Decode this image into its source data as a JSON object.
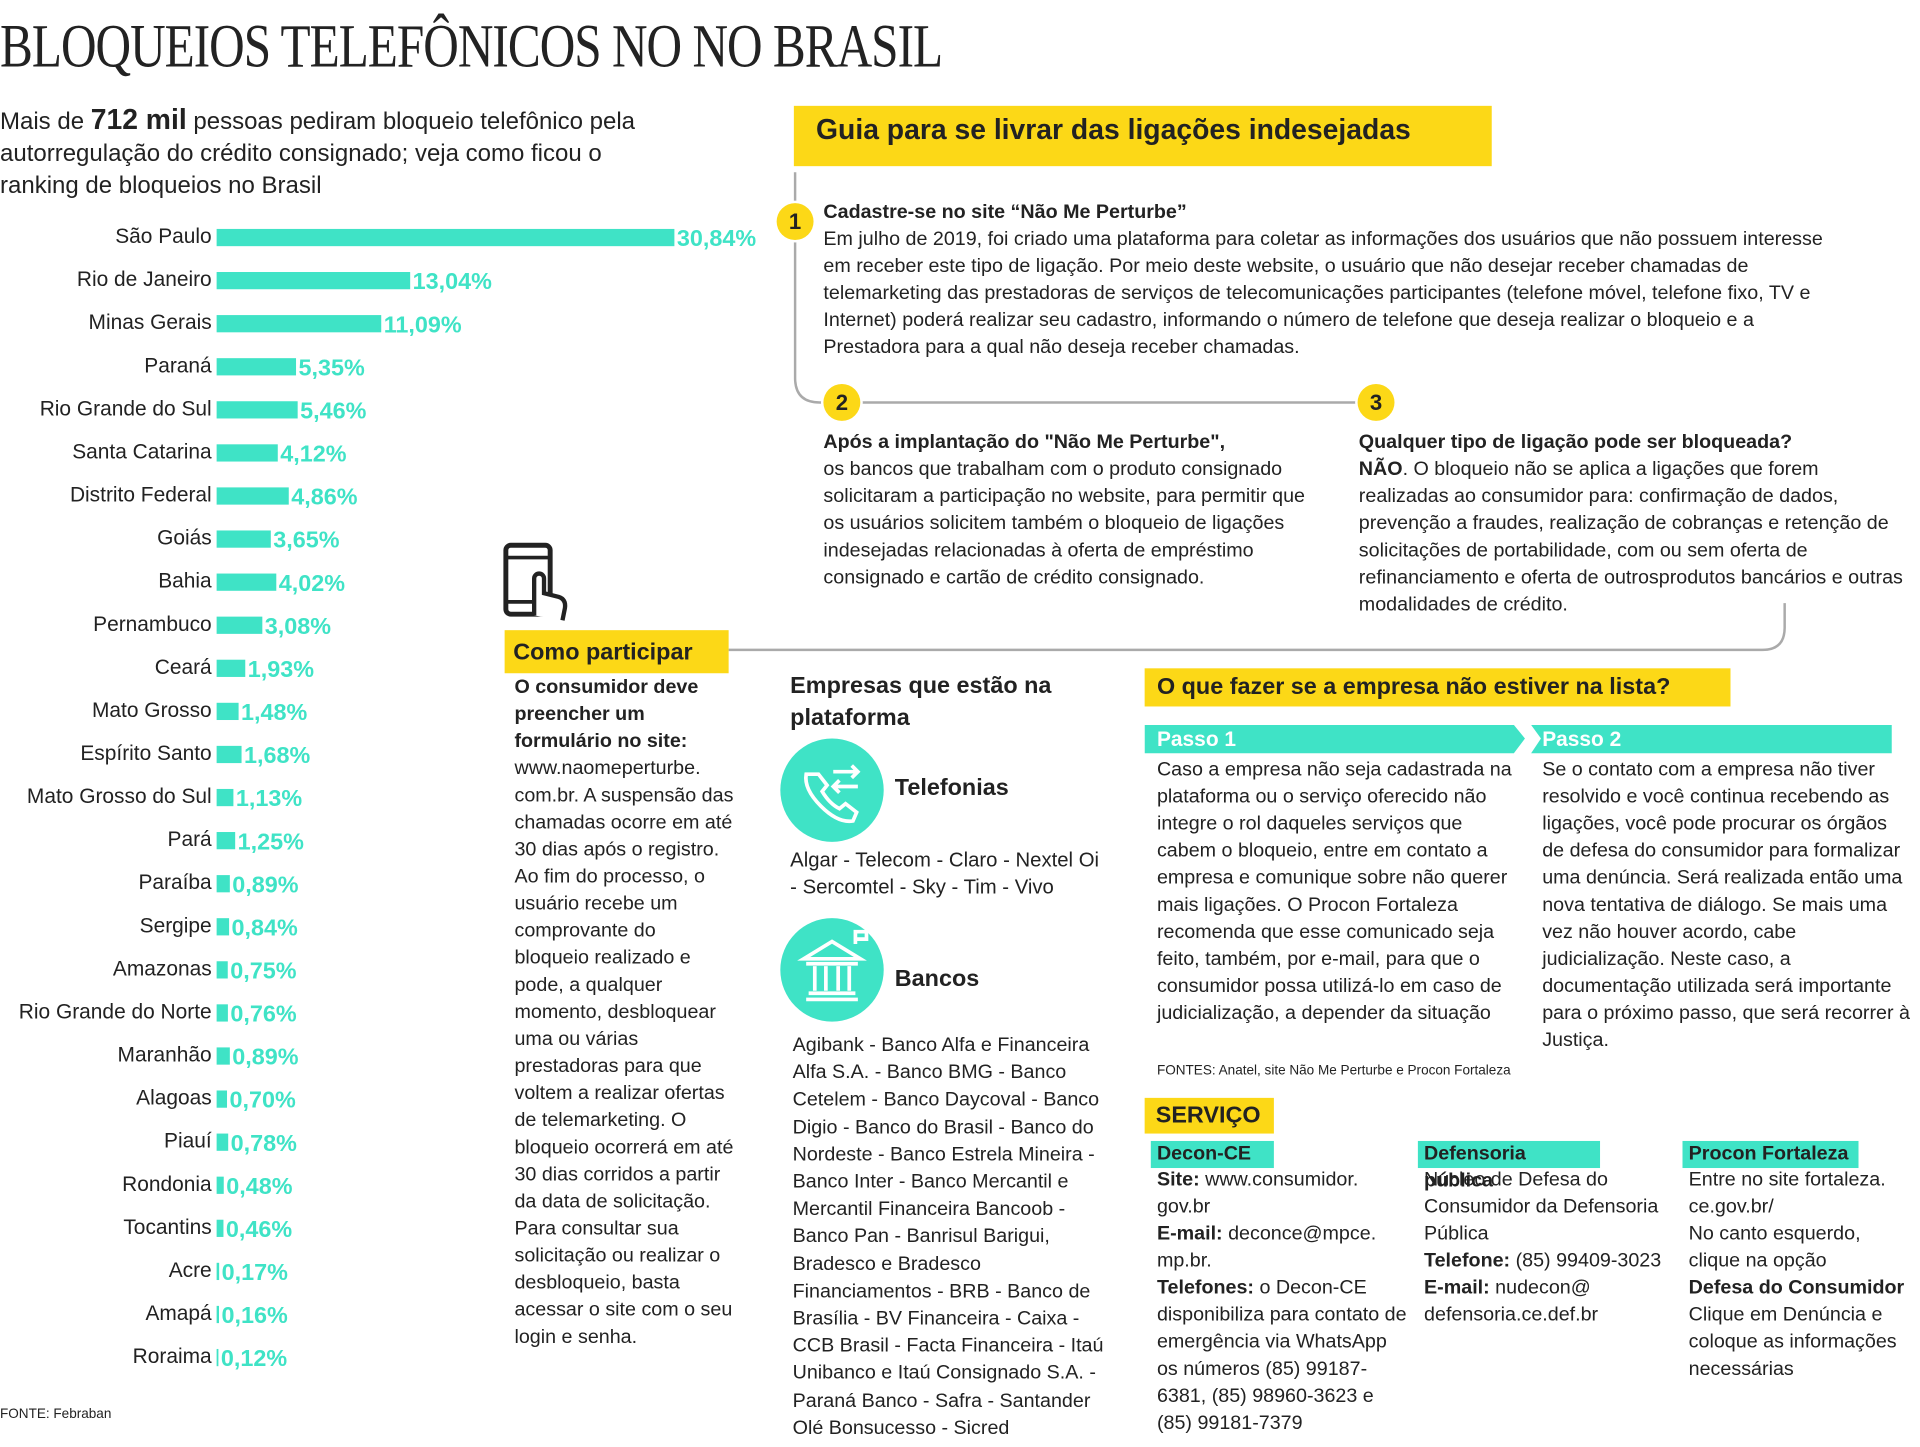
{
  "title": "BLOQUEIOS TELEFÔNICOS NO NO BRASIL",
  "intro": {
    "before": "Mais de",
    "highlight": "712 mil",
    "after": "pessoas pediram bloqueio telefônico pela autorregulação do crédito consignado; veja como ficou o ranking de bloqueios no Brasil"
  },
  "chart_data": {
    "type": "bar",
    "orientation": "horizontal",
    "categories": [
      "São Paulo",
      "Rio de Janeiro",
      "Minas Gerais",
      "Paraná",
      "Rio Grande do Sul",
      "Santa Catarina",
      "Distrito Federal",
      "Goiás",
      "Bahia",
      "Pernambuco",
      "Ceará",
      "Mato Grosso",
      "Espírito Santo",
      "Mato Grosso do Sul",
      "Pará",
      "Paraíba",
      "Sergipe",
      "Amazonas",
      "Rio Grande do Norte",
      "Maranhão",
      "Alagoas",
      "Piauí",
      "Rondonia",
      "Tocantins",
      "Acre",
      "Amapá",
      "Roraima"
    ],
    "values": [
      30.84,
      13.04,
      11.09,
      5.35,
      5.46,
      4.12,
      4.86,
      3.65,
      4.02,
      3.08,
      1.93,
      1.48,
      1.68,
      1.13,
      1.25,
      0.89,
      0.84,
      0.75,
      0.76,
      0.89,
      0.7,
      0.78,
      0.48,
      0.46,
      0.17,
      0.16,
      0.12
    ],
    "value_labels": [
      "30,84%",
      "13,04%",
      "11,09%",
      "5,35%",
      "5,46%",
      "4,12%",
      "4,86%",
      "3,65%",
      "4,02%",
      "3,08%",
      "1,93%",
      "1,48%",
      "1,68%",
      "1,13%",
      "1,25%",
      "0,89%",
      "0,84%",
      "0,75%",
      "0,76%",
      "0,89%",
      "0,70%",
      "0,78%",
      "0,48%",
      "0,46%",
      "0,17%",
      "0,16%",
      "0,12%"
    ],
    "color": "#3fe3c6",
    "source": "FONTE: Febraban"
  },
  "guide": {
    "title": "Guia para se livrar das ligações indesejadas",
    "steps": [
      {
        "number": "1",
        "title": "Cadastre-se no site “Não Me Perturbe”",
        "text": "Em julho de 2019, foi criado uma plataforma para coletar as informações dos usuários que não possuem interesse em receber este tipo de ligação. Por meio deste website, o usuário que não desejar receber chamadas de telemarketing das prestadoras de serviços de telecomunicações participantes (telefone móvel, telefone fixo, TV e Internet) poderá realizar seu cadastro, informando o número de telefone que deseja realizar o bloqueio e a Prestadora para a qual não deseja receber chamadas."
      },
      {
        "number": "2",
        "title": "Após a implantação do \"Não Me Perturbe\",",
        "text": "os bancos que trabalham com o produto consignado solicitaram a participação no website, para permitir que os usuários solicitem também o bloqueio de ligações indesejadas relacionadas à oferta de empréstimo consignado e cartão de crédito consignado."
      },
      {
        "number": "3",
        "title": "Qualquer tipo de ligação pode ser bloqueada?",
        "lead": "NÃO",
        "text": ". O bloqueio não se aplica a ligações que forem realizadas ao consumidor para: confirmação de dados, prevenção a fraudes, realização de cobranças e retenção de solicitações de portabilidade, com ou sem oferta de refinanciamento e oferta de outrosprodutos bancários e outras modalidades de crédito."
      }
    ]
  },
  "participate": {
    "title": "Como participar",
    "lead": "O consumidor deve preencher um formulário no site:",
    "text": "www.naomeperturbe. com.br. A suspensão das chamadas ocorre em até 30 dias após o registro. Ao fim do processo, o usuário recebe um comprovante do bloqueio realizado e pode, a qualquer momento, desbloquear uma ou várias prestadoras para que voltem a realizar ofertas de telemarketing. O bloqueio ocorrerá em até 30 dias corridos a partir da data de solicitação. Para consultar sua solicitação ou realizar o desbloqueio, basta acessar o site com o seu login e senha."
  },
  "companies": {
    "title": "Empresas que estão na plataforma",
    "telecom": {
      "label": "Telefonias",
      "list": "Algar - Telecom - Claro - Nextel Oi - Sercomtel - Sky - Tim - Vivo"
    },
    "banks": {
      "label": "Bancos",
      "list": "Agibank - Banco Alfa e Financeira Alfa S.A. - Banco BMG - Banco Cetelem - Banco Daycoval - Banco Digio - Banco do Brasil - Banco do Nordeste - Banco Estrela Mineira - Banco Inter - Banco Mercantil e Mercantil Financeira Bancoob - Banco Pan - Banrisul Barigui, Bradesco e Bradesco Financiamentos - BRB - Banco de Brasília - BV Financeira - Caixa - CCB Brasil - Facta Financeira - Itaú Unibanco e Itaú Consignado S.A. - Paraná Banco - Safra - Santander Olé Bonsucesso - Sicred"
    }
  },
  "not_listed": {
    "title": "O que fazer se a empresa não estiver na lista?",
    "steps": [
      {
        "label": "Passo 1",
        "text": "Caso a empresa não seja cadastrada na plataforma ou o serviço oferecido não integre o rol daqueles serviços que cabem o bloqueio, entre em contato a empresa e comunique sobre não querer mais ligações. O Procon Fortaleza recomenda que esse comunicado seja feito, também, por e-mail, para que o consumidor possa utilizá-lo em caso de judicialização, a depender da situação"
      },
      {
        "label": "Passo 2",
        "text": "Se o contato com a empresa não tiver resolvido e você continua recebendo as ligações, você pode procurar os órgãos de defesa do consumidor para formalizar uma denúncia. Será realizada então uma nova tentativa de diálogo. Se mais uma vez não houver acordo, cabe judicialização. Neste caso, a documentação utilizada será importante para o próximo passo, que será recorrer à Justiça."
      }
    ],
    "sources": "FONTES: Anatel, site Não Me Perturbe e Procon Fortaleza"
  },
  "service": {
    "title": "SERVIÇO",
    "columns": [
      {
        "name": "Decon-CE",
        "items": [
          {
            "label": "Site:",
            "text": "www.consumidor. gov.br"
          },
          {
            "label": "E-mail:",
            "text": "deconce@mpce. mp.br."
          },
          {
            "label": "Telefones:",
            "text": "o Decon-CE disponibiliza para contato de emergência via WhatsApp os números (85) 99187-6381, (85) 98960-3623 e (85) 99181-7379"
          }
        ]
      },
      {
        "name": "Defensoria pública",
        "items": [
          {
            "text": "Núcleo de Defesa do Consumidor da Defensoria Pública"
          },
          {
            "label": "Telefone:",
            "text": "(85) 99409-3023"
          },
          {
            "label": "E-mail:",
            "text": "nudecon@ defensoria.ce.def.br"
          }
        ]
      },
      {
        "name": "Procon Fortaleza",
        "items": [
          {
            "text": "Entre no site fortaleza. ce.gov.br/"
          },
          {
            "text": "No canto esquerdo, clique na opção"
          },
          {
            "label": "Defesa do Consumidor"
          },
          {
            "text": "Clique em Denúncia e coloque as informações necessárias"
          }
        ]
      }
    ]
  }
}
